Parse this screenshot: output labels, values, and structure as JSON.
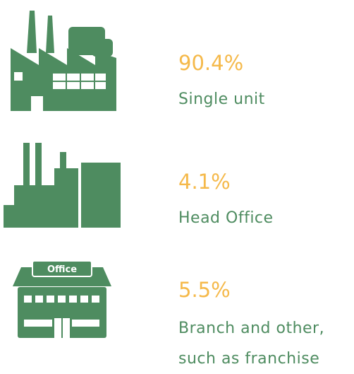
{
  "items": [
    {
      "value": "90.4%",
      "label": "Single unit"
    },
    {
      "value": "4.1%",
      "label": "Head Office"
    },
    {
      "value": "5.5%",
      "label": "Branch and other, such as franchise",
      "icon_text": "Office"
    }
  ]
}
